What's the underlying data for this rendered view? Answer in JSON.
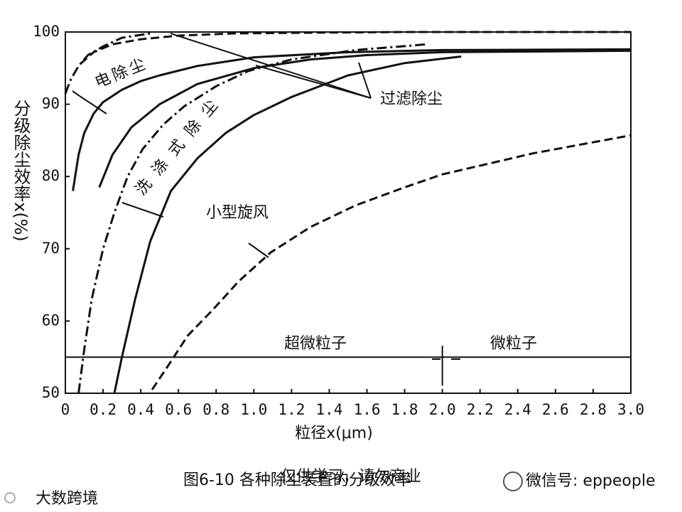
{
  "chart_data": {
    "type": "line",
    "xlabel": "粒径x(μm)",
    "ylabel": "分级除尘效率x(%)",
    "caption": "图6-10    各种除尘装置的分级效率",
    "xlim": [
      0,
      3
    ],
    "ylim": [
      50,
      100
    ],
    "xticks": [
      0,
      0.2,
      0.4,
      0.6,
      0.8,
      {
        "value": 1,
        "label": "1.0"
      },
      1.2,
      1.4,
      1.6,
      1.8,
      {
        "value": 2,
        "label": "2.0"
      },
      2.2,
      2.4,
      2.6,
      2.8,
      {
        "value": 3,
        "label": "3.0"
      }
    ],
    "yticks": [
      50,
      60,
      70,
      80,
      90,
      100
    ],
    "hline": 55,
    "vline": 2,
    "annotations": [
      "电除尘",
      "过滤除尘",
      "洗涤式除尘",
      "小型旋风",
      "超微粒子",
      "微粒子"
    ],
    "series": [
      {
        "color": "#111111",
        "style": "solid",
        "x": [
          0.04,
          0.07,
          0.1,
          0.15,
          0.2,
          0.3,
          0.4,
          0.5,
          0.7,
          1.0,
          1.5,
          2.0,
          3.0
        ],
        "values": [
          78,
          83,
          86,
          88.7,
          90.3,
          92,
          93.2,
          94,
          95.3,
          96.5,
          97.2,
          97.5,
          97.6
        ]
      },
      {
        "color": "#111111",
        "style": "dashdot",
        "x": [
          0,
          0.03,
          0.07,
          0.12,
          0.2,
          0.3,
          0.45
        ],
        "values": [
          91.5,
          93.5,
          95.3,
          96.8,
          98,
          99.2,
          99.8
        ]
      },
      {
        "color": "#111111",
        "style": "solid",
        "x": [
          0.18,
          0.25,
          0.35,
          0.5,
          0.7,
          1.0,
          1.3,
          1.6,
          2.0,
          3.0
        ],
        "values": [
          78.5,
          83,
          86.8,
          90,
          92.8,
          95,
          96.2,
          96.8,
          97.2,
          97.4
        ]
      },
      {
        "color": "#111111",
        "style": "dashed",
        "x": [
          0.08,
          0.15,
          0.25,
          0.4,
          0.6,
          0.9,
          1.3,
          1.8,
          2.4,
          3.0
        ],
        "values": [
          95.6,
          97.2,
          98.3,
          99,
          99.5,
          99.8,
          99.9,
          100,
          100,
          100
        ]
      },
      {
        "color": "#111111",
        "style": "solid",
        "x": [
          0.26,
          0.3,
          0.37,
          0.45,
          0.56,
          0.7,
          0.85,
          1.0,
          1.2,
          1.5,
          1.8,
          2.1
        ],
        "values": [
          50,
          55,
          63,
          71,
          78,
          82.5,
          86,
          88.5,
          91,
          94,
          95.7,
          96.6
        ]
      },
      {
        "color": "#111111",
        "style": "dashdot",
        "x": [
          0.07,
          0.1,
          0.14,
          0.2,
          0.26,
          0.33,
          0.41,
          0.52,
          0.63,
          0.8,
          0.97,
          1.2,
          1.54,
          1.92
        ],
        "values": [
          50,
          56,
          63,
          70,
          75,
          80,
          83.8,
          87.2,
          89.7,
          92.5,
          94.6,
          96.2,
          97.5,
          98.3
        ]
      },
      {
        "color": "#111111",
        "style": "dashed",
        "x": [
          0.46,
          0.55,
          0.65,
          0.78,
          0.92,
          1.09,
          1.3,
          1.54,
          1.8,
          2.0,
          2.25,
          2.48,
          2.75,
          3.0
        ],
        "values": [
          50.5,
          54,
          58,
          61.5,
          65.5,
          69.5,
          73,
          76,
          78.5,
          80.3,
          81.8,
          83.2,
          84.5,
          85.7
        ]
      }
    ]
  },
  "watermark": {
    "notice": "仅供学习，请勿商业",
    "wechat": "微信号: eppeople",
    "brand": "大数跨境"
  }
}
